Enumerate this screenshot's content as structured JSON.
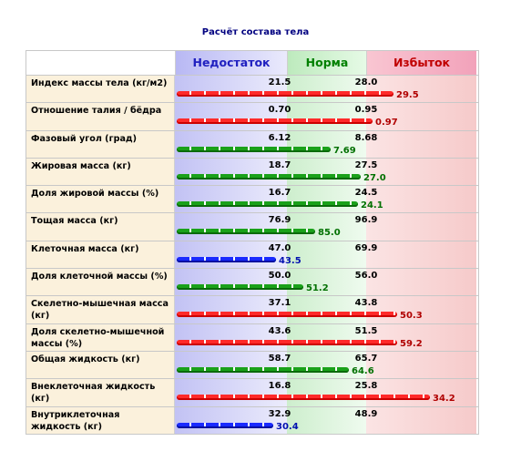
{
  "title": "Расчёт состава тела",
  "header": {
    "low": "Недостаток",
    "norm": "Норма",
    "high": "Избыток"
  },
  "colors": {
    "low": "#2020c0",
    "norm": "#008000",
    "high": "#c00000"
  },
  "rows": [
    {
      "label": "Индекс массы тела (кг/м2)",
      "low": "21.5",
      "high": "28.0",
      "value": "29.5",
      "status": "high",
      "fill": 0.72
    },
    {
      "label": "Отношение талия / бёдра",
      "low": "0.70",
      "high": "0.95",
      "value": "0.97",
      "status": "high",
      "fill": 0.65
    },
    {
      "label": "Фазовый угол (град)",
      "low": "6.12",
      "high": "8.68",
      "value": "7.69",
      "status": "norm",
      "fill": 0.51
    },
    {
      "label": "Жировая масса (кг)",
      "low": "18.7",
      "high": "27.5",
      "value": "27.0",
      "status": "norm",
      "fill": 0.61
    },
    {
      "label": "Доля жировой массы (%)",
      "low": "16.7",
      "high": "24.5",
      "value": "24.1",
      "status": "norm",
      "fill": 0.6
    },
    {
      "label": "Тощая масса (кг)",
      "low": "76.9",
      "high": "96.9",
      "value": "85.0",
      "status": "norm",
      "fill": 0.46
    },
    {
      "label": "Клеточная масса (кг)",
      "low": "47.0",
      "high": "69.9",
      "value": "43.5",
      "status": "low",
      "fill": 0.33
    },
    {
      "label": "Доля клеточной массы (%)",
      "low": "50.0",
      "high": "56.0",
      "value": "51.2",
      "status": "norm",
      "fill": 0.42
    },
    {
      "label": "Скелетно-мышечная масса (кг)",
      "low": "37.1",
      "high": "43.8",
      "value": "50.3",
      "status": "high",
      "fill": 0.73
    },
    {
      "label": "Доля скелетно-мышечной массы (%)",
      "low": "43.6",
      "high": "51.5",
      "value": "59.2",
      "status": "high",
      "fill": 0.73
    },
    {
      "label": "Общая жидкость (кг)",
      "low": "58.7",
      "high": "65.7",
      "value": "64.6",
      "status": "norm",
      "fill": 0.57
    },
    {
      "label": "Внеклеточная жидкость (кг)",
      "low": "16.8",
      "high": "25.8",
      "value": "34.2",
      "status": "high",
      "fill": 0.84
    },
    {
      "label": "Внутриклеточная жидкость (кг)",
      "low": "32.9",
      "high": "48.9",
      "value": "30.4",
      "status": "low",
      "fill": 0.32
    }
  ]
}
